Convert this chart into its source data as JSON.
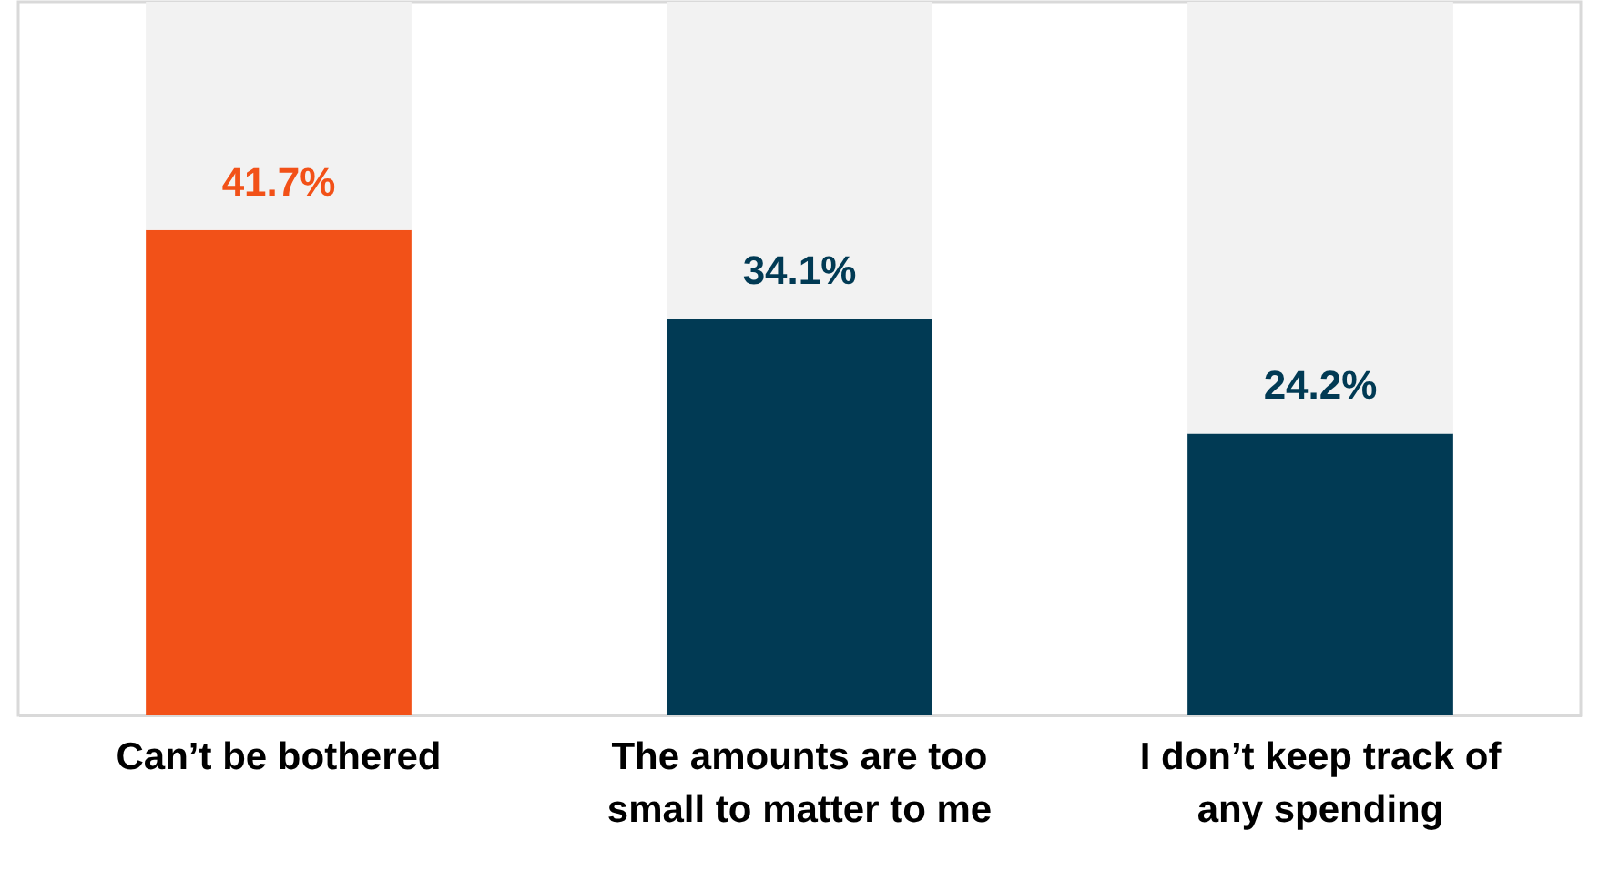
{
  "chart_data": {
    "type": "bar",
    "stacked": true,
    "categories": [
      "Can’t be bothered",
      "The amounts are too\nsmall to matter to me",
      "I don’t keep track of\nany spending"
    ],
    "series": [
      {
        "colors": [
          "#f25118",
          "#013a54",
          "#013a54"
        ],
        "values": [
          41.7,
          34.1,
          24.2
        ],
        "value_labels": [
          "41.7%",
          "34.1%",
          "24.2%"
        ]
      },
      {
        "color": "#f2f2f2",
        "values": [
          19.6,
          27.2,
          37.1
        ]
      }
    ],
    "ylim": [
      0,
      61.3
    ],
    "tick_labels": "x",
    "grid": false
  }
}
